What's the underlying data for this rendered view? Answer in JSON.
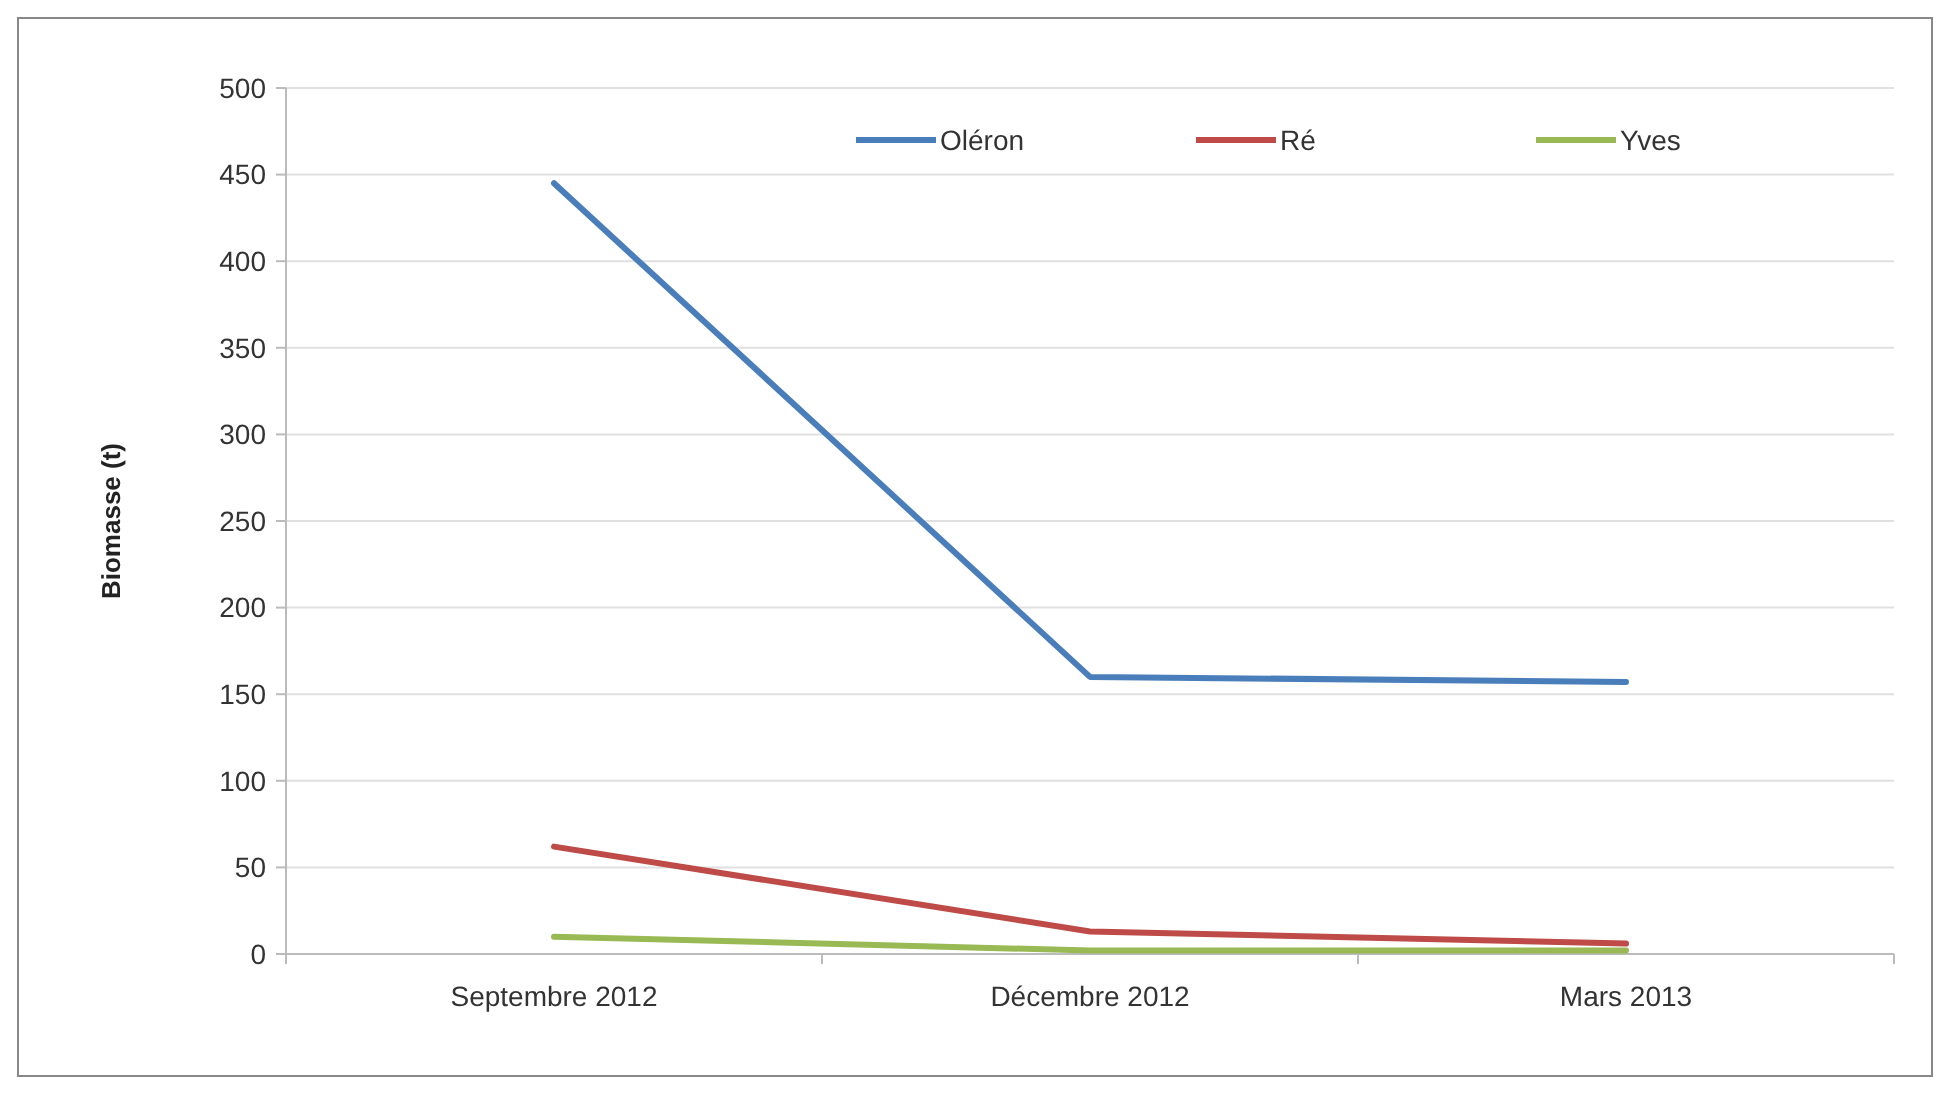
{
  "chart_data": {
    "type": "line",
    "ylabel": "Biomasse (t)",
    "categories": [
      "Septembre 2012",
      "Décembre 2012",
      "Mars 2013"
    ],
    "series": [
      {
        "name": "Oléron",
        "color": "#4a7ebb",
        "values": [
          445,
          160,
          157
        ]
      },
      {
        "name": "Ré",
        "color": "#be4b48",
        "values": [
          62,
          13,
          6
        ]
      },
      {
        "name": "Yves",
        "color": "#98b954",
        "values": [
          10,
          2,
          2
        ]
      }
    ],
    "ylim": [
      0,
      500
    ],
    "yticks": [
      0,
      50,
      100,
      150,
      200,
      250,
      300,
      350,
      400,
      450,
      500
    ],
    "grid": "y",
    "legend": "top right",
    "marker": "none",
    "line_style": "solid"
  }
}
